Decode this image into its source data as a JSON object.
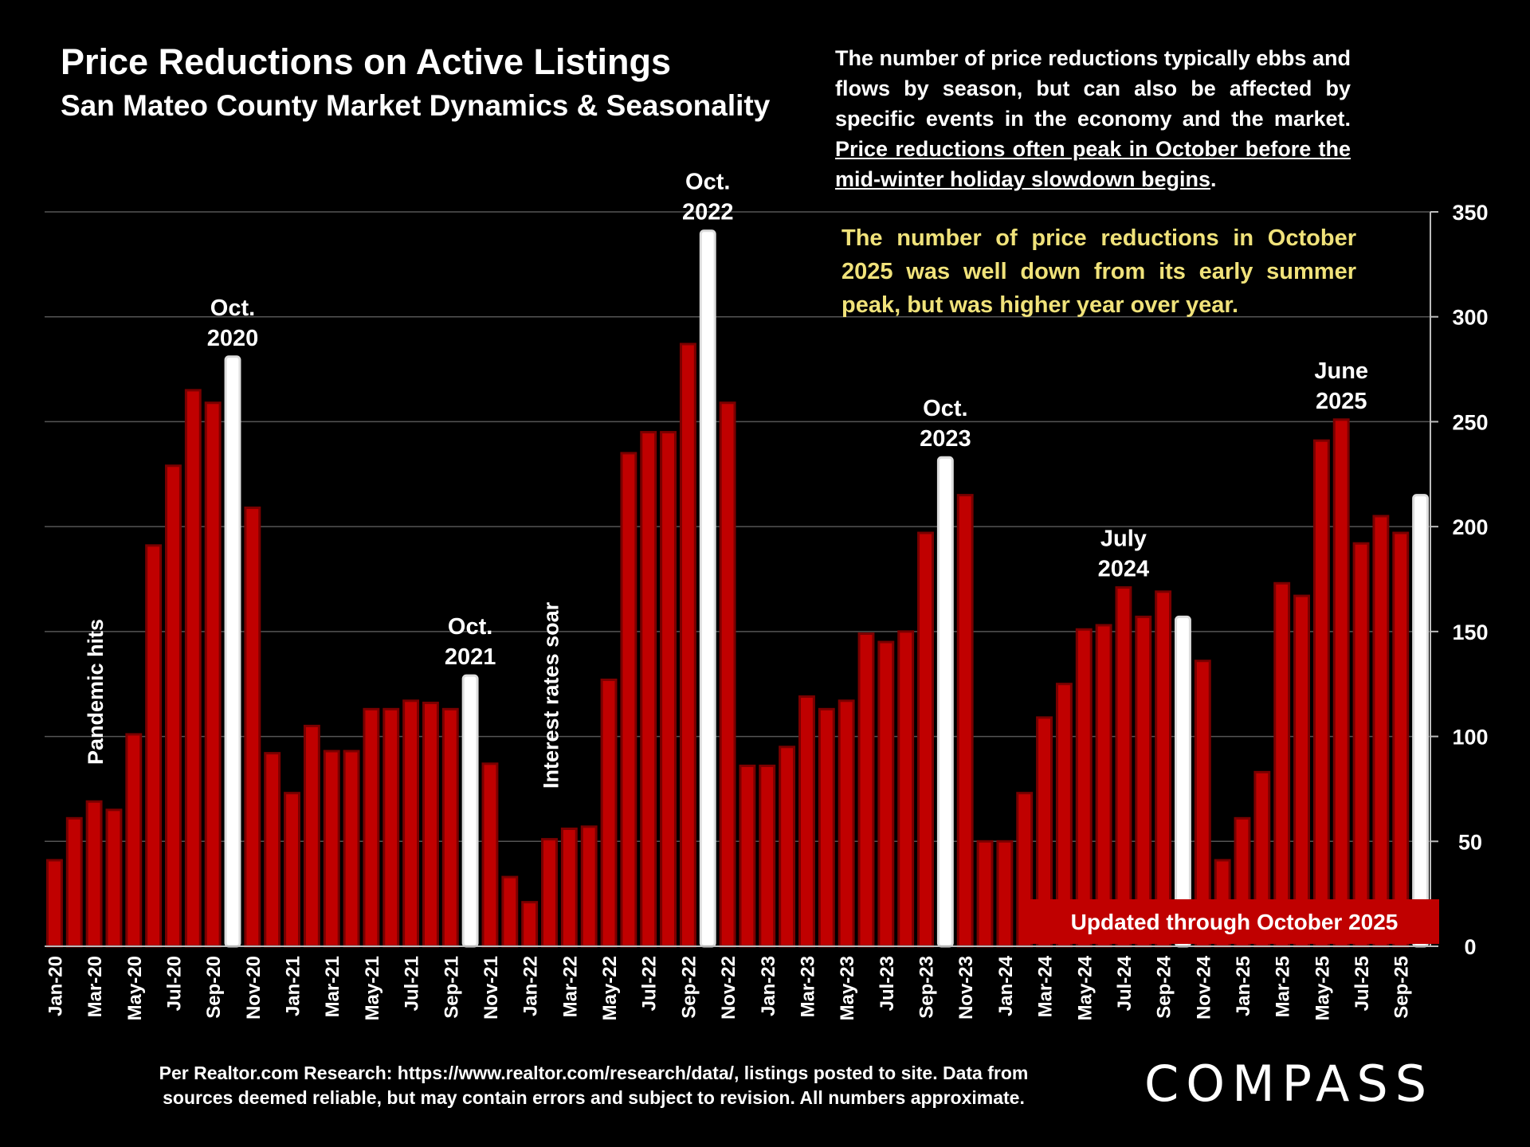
{
  "header": {
    "title": "Price Reductions on Active Listings",
    "subtitle": "San Mateo County Market Dynamics & Seasonality"
  },
  "note": {
    "plain": "The number of price reductions typically ebbs and flows by season, but can also be affected by specific events in the economy and the market. ",
    "underlined": "Price reductions often peak in October before the mid-winter holiday slowdown begins",
    "end": "."
  },
  "highlight": "The number of price reductions in October 2025 was well down from its early summer peak, but was higher year over year.",
  "footer": {
    "source": "Per Realtor.com Research:  https://www.realtor.com/research/data/, listings posted to site. Data from sources deemed reliable, but may contain errors and subject to revision. All numbers approximate.",
    "logo": "COMPASS"
  },
  "colors": {
    "bar": "#c00000",
    "highlight_bar": "#ffffff",
    "background": "#000000",
    "highlight_text": "#f0e27a",
    "banner": "#c00000"
  },
  "chart_data": {
    "type": "bar",
    "ylim": [
      0,
      350
    ],
    "yticks": [
      0,
      50,
      100,
      150,
      200,
      250,
      300,
      350
    ],
    "y_axis_side": "right",
    "grid": true,
    "categories": [
      "Jan-20",
      "Feb-20",
      "Mar-20",
      "Apr-20",
      "May-20",
      "Jun-20",
      "Jul-20",
      "Aug-20",
      "Sep-20",
      "Oct-20",
      "Nov-20",
      "Dec-20",
      "Jan-21",
      "Feb-21",
      "Mar-21",
      "Apr-21",
      "May-21",
      "Jun-21",
      "Jul-21",
      "Aug-21",
      "Sep-21",
      "Oct-21",
      "Nov-21",
      "Dec-21",
      "Jan-22",
      "Feb-22",
      "Mar-22",
      "Apr-22",
      "May-22",
      "Jun-22",
      "Jul-22",
      "Aug-22",
      "Sep-22",
      "Oct-22",
      "Nov-22",
      "Dec-22",
      "Jan-23",
      "Feb-23",
      "Mar-23",
      "Apr-23",
      "May-23",
      "Jun-23",
      "Jul-23",
      "Aug-23",
      "Sep-23",
      "Oct-23",
      "Nov-23",
      "Dec-23",
      "Jan-24",
      "Feb-24",
      "Mar-24",
      "Apr-24",
      "May-24",
      "Jun-24",
      "Jul-24",
      "Aug-24",
      "Sep-24",
      "Oct-24",
      "Nov-24",
      "Dec-24",
      "Jan-25",
      "Feb-25",
      "Mar-25",
      "Apr-25",
      "May-25",
      "Jun-25",
      "Jul-25",
      "Aug-25",
      "Sep-25",
      "Oct-25"
    ],
    "values": [
      41,
      61,
      69,
      65,
      101,
      191,
      229,
      265,
      259,
      281,
      209,
      92,
      73,
      105,
      93,
      93,
      113,
      113,
      117,
      116,
      113,
      129,
      87,
      33,
      21,
      51,
      56,
      57,
      127,
      235,
      245,
      245,
      287,
      341,
      259,
      86,
      86,
      95,
      119,
      113,
      117,
      149,
      145,
      150,
      197,
      233,
      215,
      50,
      50,
      73,
      109,
      125,
      151,
      153,
      171,
      157,
      169,
      157,
      136,
      41,
      61,
      83,
      173,
      167,
      241,
      251,
      192,
      205,
      197,
      215
    ],
    "highlighted": [
      "Oct-20",
      "Oct-21",
      "Oct-22",
      "Oct-23",
      "Oct-24",
      "Oct-25"
    ],
    "tick_label_every": 2,
    "annotations": [
      {
        "category": "Oct-20",
        "text": [
          "Oct.",
          "2020"
        ]
      },
      {
        "category": "Oct-21",
        "text": [
          "Oct.",
          "2021"
        ]
      },
      {
        "category": "Oct-22",
        "text": [
          "Oct.",
          "2022"
        ]
      },
      {
        "category": "Oct-23",
        "text": [
          "Oct.",
          "2023"
        ]
      },
      {
        "category": "Jul-24",
        "text": [
          "July",
          "2024"
        ]
      },
      {
        "category": "Jun-25",
        "text": [
          "June",
          "2025"
        ]
      }
    ],
    "vertical_annotations": [
      {
        "category": "Apr-20",
        "text": "Pandemic hits"
      },
      {
        "category": "Mar-22",
        "text": "Interest rates soar"
      }
    ],
    "banner": "Updated through October 2025"
  }
}
